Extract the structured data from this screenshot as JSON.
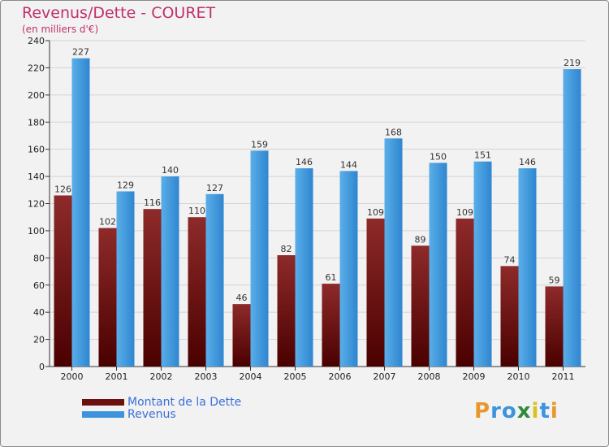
{
  "header": {
    "title": "Revenus/Dette - COURET",
    "subtitle": "(en milliers d'€)"
  },
  "chart_data": {
    "type": "bar",
    "title": "Revenus/Dette - COURET",
    "subtitle": "(en milliers d'€)",
    "xlabel": "",
    "ylabel": "",
    "categories": [
      "2000",
      "2001",
      "2002",
      "2003",
      "2004",
      "2005",
      "2006",
      "2007",
      "2008",
      "2009",
      "2010",
      "2011"
    ],
    "series": [
      {
        "name": "Montant de la Dette",
        "values": [
          126,
          102,
          116,
          110,
          46,
          82,
          61,
          109,
          89,
          109,
          74,
          59
        ],
        "color": "#7a1a1a"
      },
      {
        "name": "Revenus",
        "values": [
          227,
          129,
          140,
          127,
          159,
          146,
          144,
          168,
          150,
          151,
          146,
          219
        ],
        "color": "#3d93dc"
      }
    ],
    "ylim": [
      0,
      240
    ],
    "yticks": [
      0,
      20,
      40,
      60,
      80,
      100,
      120,
      140,
      160,
      180,
      200,
      220,
      240
    ],
    "grid": true,
    "legend_position": "bottom-left",
    "data_labels": true
  },
  "legend": {
    "items": [
      {
        "label": "Montant de la Dette",
        "color": "#6b0f0f"
      },
      {
        "label": "Revenus",
        "color": "#3d93dc"
      }
    ]
  },
  "logo": {
    "text": "Proxiti",
    "letters": [
      {
        "char": "P",
        "color": "#e8972a"
      },
      {
        "char": "r",
        "color": "#3d93dc"
      },
      {
        "char": "o",
        "color": "#3d93dc"
      },
      {
        "char": "x",
        "color": "#2e8b3a"
      },
      {
        "char": "i",
        "color": "#d9c21f"
      },
      {
        "char": "t",
        "color": "#3d93dc"
      },
      {
        "char": "i",
        "color": "#e8972a"
      }
    ]
  }
}
